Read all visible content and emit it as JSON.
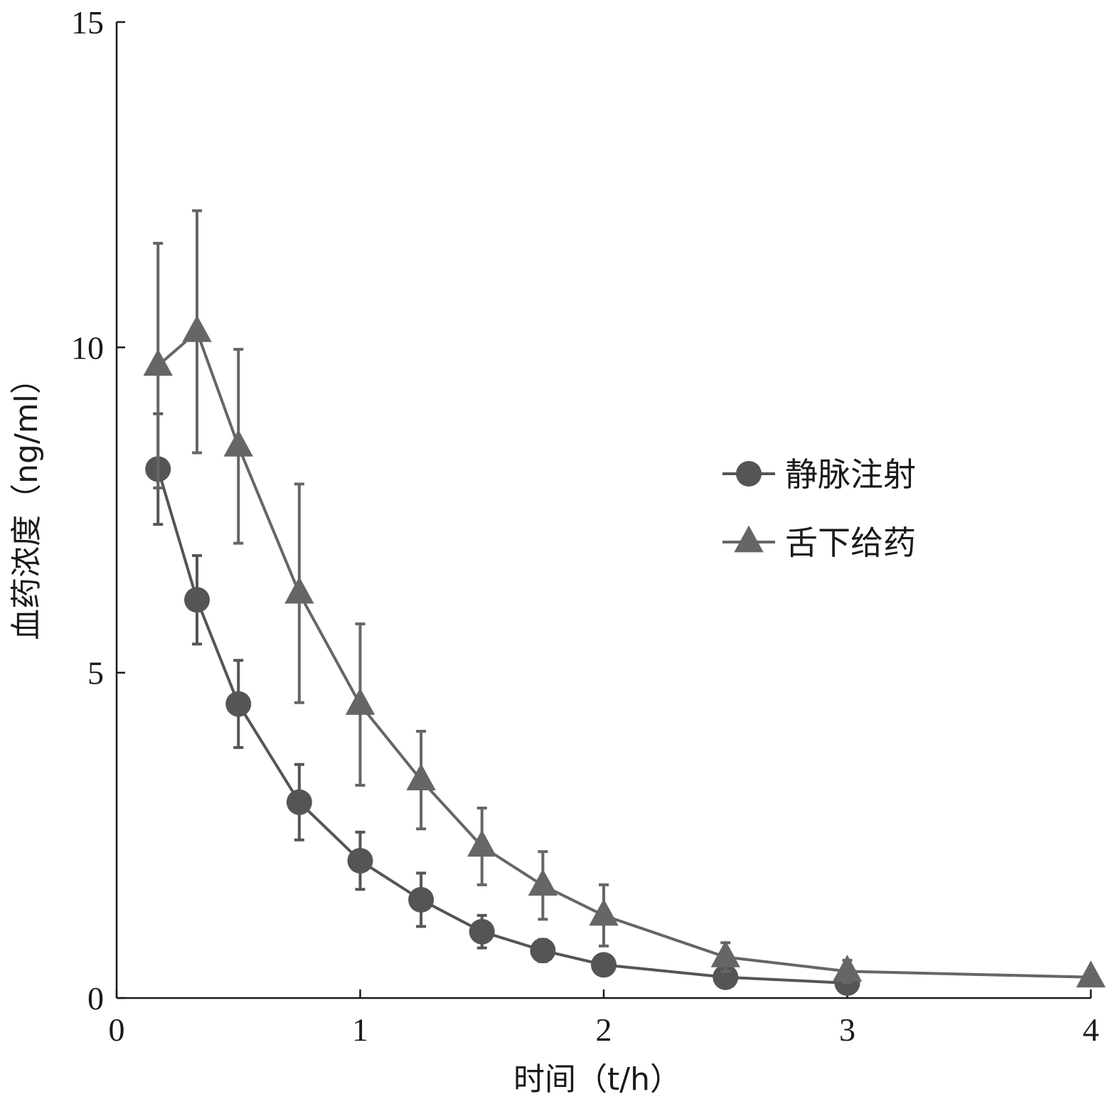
{
  "chart_data": {
    "type": "line",
    "xlabel": "时间（t/h）",
    "ylabel": "血药浓度（ng/ml）",
    "xlim": [
      0,
      4
    ],
    "ylim": [
      0,
      15
    ],
    "xticks": [
      "0",
      "1",
      "2",
      "3",
      "4"
    ],
    "yticks": [
      "0",
      "5",
      "10",
      "15"
    ],
    "grid": false,
    "legend_position": "right-middle",
    "series": [
      {
        "name": "静脉注射",
        "marker": "circle",
        "color": "#555555",
        "x": [
          0.17,
          0.33,
          0.5,
          0.75,
          1.0,
          1.25,
          1.5,
          1.75,
          2.0,
          2.5,
          3.0
        ],
        "y": [
          8.13,
          6.12,
          4.52,
          3.01,
          2.11,
          1.51,
          1.02,
          0.73,
          0.51,
          0.32,
          0.23
        ],
        "err": [
          0.85,
          0.68,
          0.67,
          0.58,
          0.44,
          0.41,
          0.25,
          0.17,
          0.13,
          0.08,
          0.06
        ]
      },
      {
        "name": "舌下给药",
        "marker": "triangle",
        "color": "#666666",
        "x": [
          0.17,
          0.33,
          0.5,
          0.75,
          1.0,
          1.25,
          1.5,
          1.75,
          2.0,
          2.5,
          3.0,
          4.0
        ],
        "y": [
          9.72,
          10.24,
          8.48,
          6.22,
          4.51,
          3.35,
          2.33,
          1.73,
          1.27,
          0.63,
          0.41,
          0.32
        ],
        "err": [
          1.88,
          1.86,
          1.49,
          1.68,
          1.24,
          0.75,
          0.59,
          0.52,
          0.47,
          0.22,
          0.17,
          0.05
        ]
      }
    ]
  }
}
